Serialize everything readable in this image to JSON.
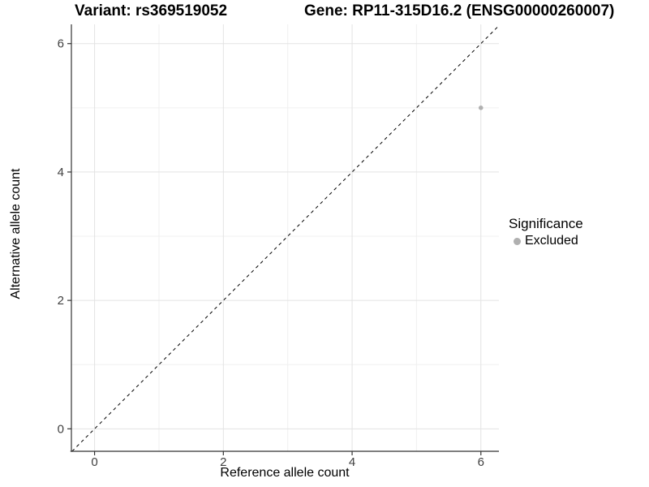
{
  "chart_data": {
    "type": "scatter",
    "title_left": "Variant: rs369519052",
    "title_right": "Gene: RP11-315D16.2 (ENSG00000260007)",
    "xlabel": "Reference allele count",
    "ylabel": "Alternative allele count",
    "xlim": [
      -0.36,
      6.28
    ],
    "ylim": [
      -0.35,
      6.3
    ],
    "xticks": [
      0,
      2,
      4,
      6
    ],
    "yticks": [
      0,
      2,
      4,
      6
    ],
    "xticks_minor": [
      1,
      3,
      5
    ],
    "yticks_minor": [
      1,
      3,
      5
    ],
    "grid": "major+minor",
    "points": [
      {
        "x": 6,
        "y": 5,
        "series": "Excluded"
      }
    ],
    "reference_line": {
      "type": "identity",
      "style": "dashed",
      "color": "#000000"
    },
    "legend": {
      "title": "Significance",
      "position": "right",
      "entries": [
        {
          "label": "Excluded",
          "color": "#b0b0b0"
        }
      ]
    },
    "colors": {
      "background": "#ffffff",
      "grid_major": "#e3e3e3",
      "grid_minor": "#f0f0f0",
      "axis": "#333333",
      "tick_text": "#404040",
      "point": "#b0b0b0",
      "identity_line": "#000000"
    }
  }
}
